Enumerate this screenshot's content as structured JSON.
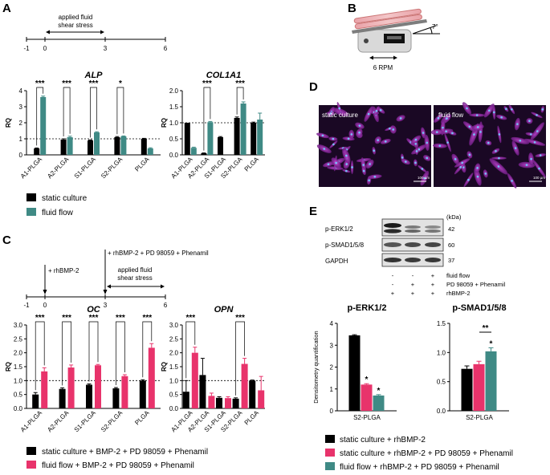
{
  "panels": {
    "A": "A",
    "B": "B",
    "C": "C",
    "D": "D",
    "E": "E"
  },
  "timeline_a": {
    "ticks": [
      "-1",
      "0",
      "3",
      "6"
    ],
    "label_line1": "applied fluid",
    "label_line2": "shear stress"
  },
  "timeline_c": {
    "ticks": [
      "-1",
      "0",
      "3",
      "6"
    ],
    "rhbmp": "+ rhBMP-2",
    "combo": "+ rhBMP-2 + PD 98059 + Phenamil",
    "label_line1": "applied fluid",
    "label_line2": "shear stress"
  },
  "setup_b": {
    "angle": "7°",
    "speed": "6 RPM"
  },
  "images_d": {
    "left": "static culture",
    "right": "fluid flow",
    "scale_left": "100 µm",
    "scale_right": "100 µm"
  },
  "legend_a": {
    "static": "static culture",
    "flow": "fluid flow"
  },
  "legend_c": {
    "static": "static culture + BMP-2 + PD 98059 + Phenamil",
    "flow": "fluid flow + BMP-2 + PD 98059 + Phenamil"
  },
  "legend_e": {
    "a": "static culture + rhBMP-2",
    "b": "static culture + rhBMP-2 + PD 98059 + Phenamil",
    "c": "fluid flow + rhBMP-2 + PD 98059 + Phenamil"
  },
  "blot": {
    "rows": [
      "p-ERK1/2",
      "p-SMAD1/5/8",
      "GAPDH"
    ],
    "kda_header": "(kDa)",
    "kda": [
      "42",
      "60",
      "37"
    ],
    "conditions": [
      {
        "signs": [
          "-",
          "-",
          "+"
        ],
        "label": "fluid flow"
      },
      {
        "signs": [
          "-",
          "+",
          "+"
        ],
        "label": "PD 98059 + Phenamil"
      },
      {
        "signs": [
          "+",
          "+",
          "+"
        ],
        "label": "rhBMP-2"
      }
    ]
  },
  "colors": {
    "static": "#000000",
    "flow_teal": "#3f8a85",
    "flow_pink": "#e8336b",
    "mid_pink": "#e8336b"
  },
  "chart_data": [
    {
      "id": "alp",
      "type": "bar",
      "title": "ALP",
      "ylabel": "RQ",
      "ylim": [
        0,
        4
      ],
      "yticks": [
        0,
        1,
        2,
        3,
        4
      ],
      "categories": [
        "A1-PLGA",
        "A2-PLGA",
        "S1-PLGA",
        "S2-PLGA",
        "PLGA"
      ],
      "series": [
        {
          "name": "static culture",
          "values": [
            0.4,
            0.95,
            0.9,
            1.1,
            1.0
          ],
          "errors": [
            0.03,
            0.05,
            0.03,
            0.04,
            0.03
          ]
        },
        {
          "name": "fluid flow",
          "values": [
            3.6,
            1.1,
            1.4,
            1.15,
            0.4
          ],
          "errors": [
            0.06,
            0.06,
            0.04,
            0.03,
            0.04
          ]
        }
      ],
      "reference_line": 1,
      "significance": [
        "***",
        "***",
        "***",
        "*",
        ""
      ]
    },
    {
      "id": "col1a1",
      "type": "bar",
      "title": "COL1A1",
      "ylabel": "RQ",
      "ylim": [
        0,
        2
      ],
      "yticks": [
        0.0,
        0.5,
        1.0,
        1.5,
        2.0
      ],
      "categories": [
        "A1-PLGA",
        "A2-PLGA",
        "S1-PLGA",
        "S2-PLGA",
        "PLGA"
      ],
      "series": [
        {
          "name": "static culture",
          "values": [
            1.0,
            0.05,
            0.55,
            1.15,
            1.0
          ],
          "errors": [
            0.0,
            0.01,
            0.02,
            0.03,
            0.02
          ]
        },
        {
          "name": "fluid flow",
          "values": [
            0.22,
            1.02,
            0.0,
            1.6,
            1.1
          ],
          "errors": [
            0.02,
            0.02,
            0.0,
            0.05,
            0.2
          ]
        }
      ],
      "reference_line": 1,
      "significance": [
        "",
        "***",
        "",
        "***",
        ""
      ]
    },
    {
      "id": "oc",
      "type": "bar",
      "title": "OC",
      "ylabel": "RQ",
      "ylim": [
        0,
        3
      ],
      "yticks": [
        0.0,
        0.5,
        1.0,
        1.5,
        2.0,
        2.5,
        3.0
      ],
      "categories": [
        "A1-PLGA",
        "A2-PLGA",
        "S1-PLGA",
        "S2-PLGA",
        "PLGA"
      ],
      "series": [
        {
          "name": "static culture + BMP-2 + PD 98059 + Phenamil",
          "values": [
            0.5,
            0.7,
            0.85,
            0.72,
            1.0
          ],
          "errors": [
            0.07,
            0.04,
            0.03,
            0.03,
            0.03
          ]
        },
        {
          "name": "fluid flow + BMP-2 + PD 98059 + Phenamil",
          "values": [
            1.33,
            1.47,
            1.55,
            1.16,
            2.18
          ],
          "errors": [
            0.13,
            0.09,
            0.03,
            0.05,
            0.15
          ]
        }
      ],
      "reference_line": 1,
      "significance": [
        "***",
        "***",
        "***",
        "***",
        "***"
      ]
    },
    {
      "id": "opn",
      "type": "bar",
      "title": "OPN",
      "ylabel": "RQ",
      "ylim": [
        0,
        3
      ],
      "yticks": [
        0.0,
        0.5,
        1.0,
        1.5,
        2.0,
        2.5,
        3.0
      ],
      "categories": [
        "A1-PLGA",
        "A2-PLGA",
        "S1-PLGA",
        "S2-PLGA",
        "PLGA"
      ],
      "series": [
        {
          "name": "static culture + BMP-2 + PD 98059 + Phenamil",
          "values": [
            0.6,
            1.2,
            0.38,
            0.35,
            1.0
          ],
          "errors": [
            0.4,
            0.6,
            0.04,
            0.03,
            0.02
          ]
        },
        {
          "name": "fluid flow + BMP-2 + PD 98059 + Phenamil",
          "values": [
            2.0,
            0.45,
            0.37,
            1.6,
            0.65
          ],
          "errors": [
            0.2,
            0.1,
            0.05,
            0.2,
            0.5
          ]
        }
      ],
      "reference_line": 1,
      "significance": [
        "***",
        "",
        "",
        "***",
        ""
      ]
    },
    {
      "id": "perk",
      "type": "bar",
      "title": "p-ERK1/2",
      "ylabel": "Densitometry quantification",
      "ylim": [
        0,
        4
      ],
      "yticks": [
        0,
        1,
        2,
        3,
        4
      ],
      "categories": [
        "S2-PLGA"
      ],
      "series": [
        {
          "name": "static culture + rhBMP-2",
          "values": [
            3.45
          ],
          "errors": [
            0.03
          ]
        },
        {
          "name": "static culture + rhBMP-2 + PD 98059 + Phenamil",
          "values": [
            1.2
          ],
          "errors": [
            0.04
          ]
        },
        {
          "name": "fluid flow + rhBMP-2 + PD 98059 + Phenamil",
          "values": [
            0.7
          ],
          "errors": [
            0.04
          ]
        }
      ],
      "stars": [
        "",
        "*",
        "*"
      ]
    },
    {
      "id": "psmad",
      "type": "bar",
      "title": "p-SMAD1/5/8",
      "ylabel": "",
      "ylim": [
        0,
        1.5
      ],
      "yticks": [
        0.0,
        0.5,
        1.0,
        1.5
      ],
      "categories": [
        "S2-PLGA"
      ],
      "series": [
        {
          "name": "static culture + rhBMP-2",
          "values": [
            0.72
          ],
          "errors": [
            0.05
          ]
        },
        {
          "name": "static culture + rhBMP-2 + PD 98059 + Phenamil",
          "values": [
            0.8
          ],
          "errors": [
            0.05
          ]
        },
        {
          "name": "fluid flow + rhBMP-2 + PD 98059 + Phenamil",
          "values": [
            1.02
          ],
          "errors": [
            0.06
          ]
        }
      ],
      "stars": [
        "",
        "",
        "*"
      ],
      "bracket": "**"
    }
  ]
}
